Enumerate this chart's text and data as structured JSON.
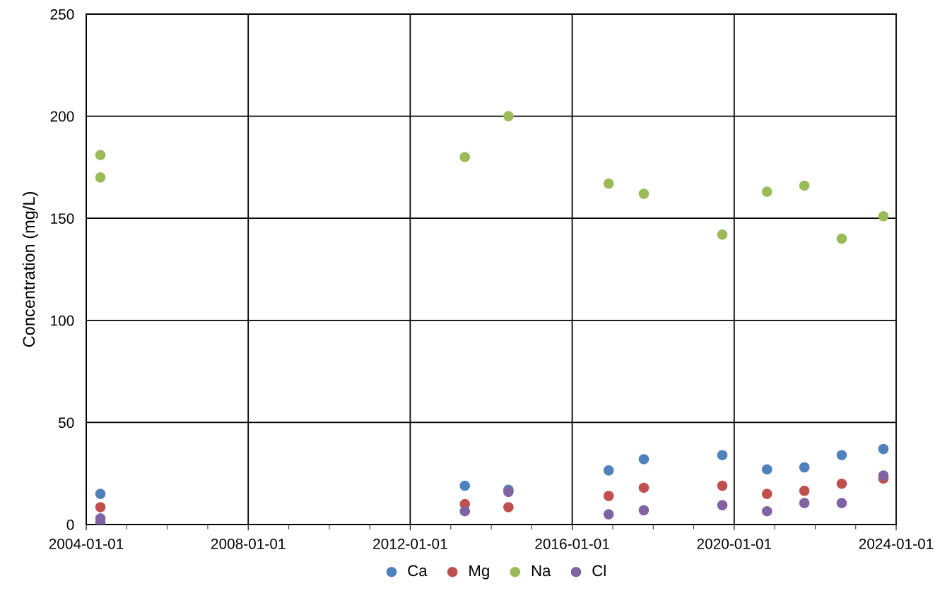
{
  "chart_data": {
    "type": "scatter",
    "ylabel": "Concentration (mg/L)",
    "x": [
      "2004-05-08",
      "2004-05-08",
      "2013-05-08",
      "2014-06-05",
      "2016-11-25",
      "2017-10-08",
      "2019-09-16",
      "2020-10-23",
      "2021-09-25",
      "2022-08-28",
      "2023-09-08"
    ],
    "series": [
      {
        "name": "Ca",
        "color": "#4f81bd",
        "values": [
          15,
          null,
          19,
          17,
          26.5,
          32,
          34,
          27,
          28,
          34,
          37
        ]
      },
      {
        "name": "Mg",
        "color": "#c0504d",
        "values": [
          8.5,
          null,
          10,
          8.5,
          14,
          18,
          19,
          15,
          16.5,
          20,
          22.5
        ]
      },
      {
        "name": "Na",
        "color": "#9bbb59",
        "values": [
          181,
          170,
          180,
          200,
          167,
          162,
          142,
          163,
          166,
          140,
          151
        ]
      },
      {
        "name": "Cl",
        "color": "#8064a2",
        "values": [
          3,
          1,
          6.5,
          16,
          5,
          7,
          9.5,
          6.5,
          10.5,
          10.5,
          24
        ]
      }
    ],
    "xlim": [
      "2004-01-01",
      "2024-01-01"
    ],
    "xticks": [
      {
        "value": "2004-01-01",
        "label": "2004-01-01"
      },
      {
        "value": "2008-01-01",
        "label": "2008-01-01"
      },
      {
        "value": "2012-01-01",
        "label": "2012-01-01"
      },
      {
        "value": "2016-01-01",
        "label": "2016-01-01"
      },
      {
        "value": "2020-01-01",
        "label": "2020-01-01"
      },
      {
        "value": "2024-01-01",
        "label": "2024-01-01"
      }
    ],
    "ylim": [
      0,
      250
    ],
    "yticks": [
      0,
      50,
      100,
      150,
      200,
      250
    ],
    "grid": true,
    "legend": "bottom",
    "marker": "circle"
  }
}
